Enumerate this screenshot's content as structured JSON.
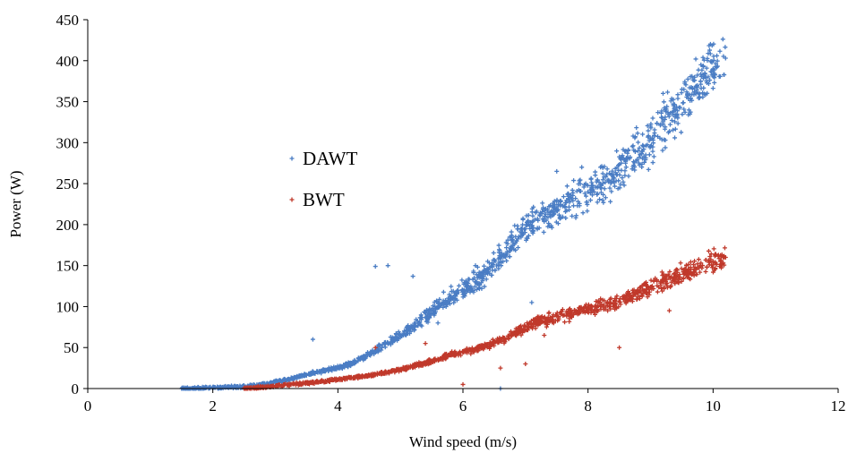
{
  "chart_data": {
    "type": "scatter",
    "title": "",
    "xlabel": "Wind speed (m/s)",
    "ylabel": "Power (W)",
    "xlim": [
      0,
      12
    ],
    "ylim": [
      0,
      450
    ],
    "xticks": [
      0,
      2,
      4,
      6,
      8,
      10,
      12
    ],
    "yticks": [
      0,
      50,
      100,
      150,
      200,
      250,
      300,
      350,
      400,
      450
    ],
    "grid": false,
    "legend_position": "left-middle",
    "marker": "+",
    "series": [
      {
        "name": "DAWT",
        "color": "#4a7dc4",
        "x_range": [
          1.5,
          10.2
        ],
        "x": [
          1.5,
          1.6,
          1.7,
          1.8,
          1.9,
          2.0,
          2.2,
          2.4,
          2.6,
          2.8,
          3.0,
          3.2,
          3.4,
          3.6,
          3.8,
          4.0,
          4.2,
          4.4,
          4.6,
          4.8,
          5.0,
          5.2,
          5.4,
          5.6,
          5.8,
          6.0,
          6.2,
          6.4,
          6.6,
          6.8,
          7.0,
          7.2,
          7.4,
          7.6,
          7.8,
          8.0,
          8.2,
          8.4,
          8.6,
          8.8,
          9.0,
          9.2,
          9.4,
          9.6,
          9.8,
          10.0,
          10.2
        ],
        "y": [
          0,
          0,
          0.5,
          0.5,
          1,
          1,
          1.5,
          2,
          3,
          5,
          8,
          11,
          15,
          19,
          22,
          25,
          30,
          38,
          46,
          55,
          65,
          75,
          87,
          100,
          112,
          120,
          130,
          145,
          160,
          178,
          195,
          205,
          215,
          223,
          232,
          240,
          248,
          258,
          275,
          290,
          305,
          322,
          340,
          358,
          375,
          390,
          403
        ],
        "outliers": [
          [
            4.6,
            149
          ],
          [
            5.2,
            137
          ],
          [
            3.6,
            60
          ],
          [
            4.8,
            150
          ],
          [
            6.6,
            0
          ],
          [
            7.5,
            265
          ],
          [
            7.9,
            270
          ],
          [
            7.1,
            105
          ],
          [
            8.2,
            270
          ],
          [
            9.0,
            320
          ],
          [
            9.2,
            360
          ],
          [
            5.6,
            80
          ],
          [
            6.2,
            150
          ]
        ]
      },
      {
        "name": "BWT",
        "color": "#c0392b",
        "x_range": [
          2.5,
          10.2
        ],
        "x": [
          2.5,
          2.6,
          2.8,
          3.0,
          3.2,
          3.4,
          3.6,
          3.8,
          4.0,
          4.2,
          4.4,
          4.6,
          4.8,
          5.0,
          5.2,
          5.4,
          5.6,
          5.8,
          6.0,
          6.2,
          6.4,
          6.6,
          6.8,
          7.0,
          7.2,
          7.4,
          7.6,
          7.8,
          8.0,
          8.2,
          8.4,
          8.6,
          8.8,
          9.0,
          9.2,
          9.4,
          9.6,
          9.8,
          10.0,
          10.2
        ],
        "y": [
          0,
          0.5,
          1.5,
          3,
          4.5,
          6,
          7.5,
          9,
          11,
          13,
          15,
          17,
          20,
          23,
          27,
          31,
          36,
          41,
          45,
          48,
          52,
          58,
          66,
          75,
          82,
          85,
          89,
          93,
          97,
          100,
          104,
          111,
          118,
          124,
          130,
          137,
          143,
          150,
          155,
          160
        ],
        "outliers": [
          [
            4.6,
            50
          ],
          [
            5.4,
            55
          ],
          [
            6.0,
            5
          ],
          [
            6.6,
            25
          ],
          [
            8.5,
            50
          ],
          [
            9.3,
            95
          ],
          [
            7.3,
            65
          ],
          [
            7.0,
            30
          ]
        ]
      }
    ]
  }
}
